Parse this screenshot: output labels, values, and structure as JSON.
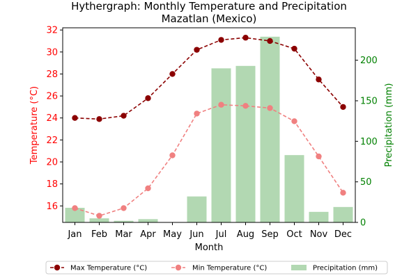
{
  "chart_data": {
    "type": "bar+line",
    "title": "Hythergraph: Monthly Temperature and Precipitation",
    "subtitle": "Mazatlan (Mexico)",
    "xlabel": "Month",
    "ylabel_left": "Temperature (°C)",
    "ylabel_right": "Precipitation (mm)",
    "categories": [
      "Jan",
      "Feb",
      "Mar",
      "Apr",
      "May",
      "Jun",
      "Jul",
      "Aug",
      "Sep",
      "Oct",
      "Nov",
      "Dec"
    ],
    "ylim_left": [
      14.5,
      32.2
    ],
    "yticks_left": [
      16,
      18,
      20,
      22,
      24,
      26,
      28,
      30,
      32
    ],
    "ylim_right": [
      0,
      240
    ],
    "yticks_right": [
      0,
      50,
      100,
      150,
      200
    ],
    "series": [
      {
        "name": "Max Temperature (°C)",
        "kind": "line",
        "axis": "left",
        "color": "#8b0000",
        "values": [
          24.0,
          23.9,
          24.2,
          25.8,
          28.0,
          30.2,
          31.1,
          31.3,
          31.0,
          30.3,
          27.5,
          25.0
        ]
      },
      {
        "name": "Min Temperature (°C)",
        "kind": "line",
        "axis": "left",
        "color": "#f08080",
        "values": [
          15.8,
          15.1,
          15.8,
          17.6,
          20.6,
          24.4,
          25.2,
          25.1,
          24.9,
          23.7,
          20.5,
          17.2
        ]
      },
      {
        "name": "Precipitation (mm)",
        "kind": "bar",
        "axis": "right",
        "color": "#b2d8b2",
        "values": [
          18,
          5,
          2,
          4,
          0,
          32,
          190,
          193,
          229,
          83,
          13,
          19
        ]
      }
    ],
    "legend_position": "bottom"
  }
}
